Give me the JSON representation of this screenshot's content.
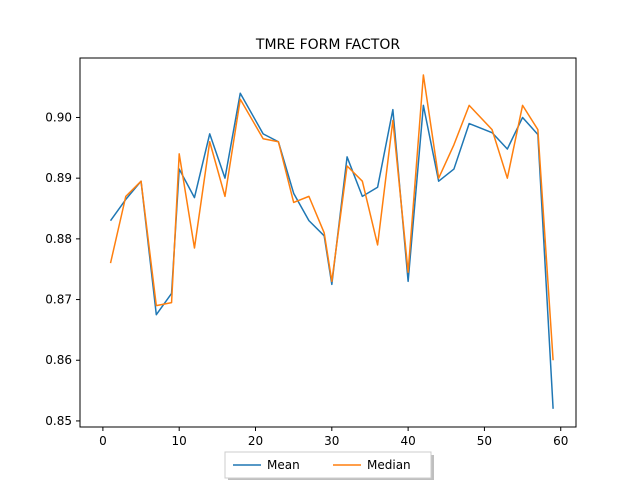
{
  "chart_data": {
    "type": "line",
    "title": "TMRE FORM FACTOR",
    "xlabel": "",
    "ylabel": "",
    "xlim": [
      -3,
      62
    ],
    "ylim": [
      0.849,
      0.9098
    ],
    "x_ticks": [
      0,
      10,
      20,
      30,
      40,
      50,
      60
    ],
    "y_ticks": [
      0.85,
      0.86,
      0.87,
      0.88,
      0.89,
      0.9
    ],
    "y_tick_labels": [
      "0.85",
      "0.86",
      "0.87",
      "0.88",
      "0.89",
      "0.90"
    ],
    "grid": false,
    "legend_position": "bottom-center, outside",
    "series": [
      {
        "name": "Mean",
        "color": "#1f77b4",
        "x": [
          1,
          3,
          5,
          7,
          9,
          10,
          12,
          14,
          16,
          18,
          21,
          23,
          25,
          27,
          29,
          30,
          32,
          34,
          36,
          38,
          40,
          42,
          44,
          46,
          48,
          51,
          53,
          55,
          57,
          59
        ],
        "y": [
          0.883,
          0.8865,
          0.8895,
          0.8675,
          0.871,
          0.8915,
          0.8868,
          0.8973,
          0.89,
          0.904,
          0.8973,
          0.896,
          0.8875,
          0.883,
          0.8805,
          0.8725,
          0.8935,
          0.887,
          0.8885,
          0.9013,
          0.873,
          0.902,
          0.8895,
          0.8915,
          0.899,
          0.8975,
          0.8948,
          0.9,
          0.8972,
          0.852
        ]
      },
      {
        "name": "Median",
        "color": "#ff7f0e",
        "x": [
          1,
          3,
          5,
          7,
          9,
          10,
          12,
          14,
          16,
          18,
          21,
          23,
          25,
          27,
          29,
          30,
          32,
          34,
          36,
          38,
          40,
          42,
          44,
          46,
          48,
          51,
          53,
          55,
          57,
          59
        ],
        "y": [
          0.876,
          0.887,
          0.8895,
          0.869,
          0.8695,
          0.894,
          0.8785,
          0.896,
          0.887,
          0.903,
          0.8965,
          0.896,
          0.886,
          0.887,
          0.881,
          0.873,
          0.892,
          0.8895,
          0.879,
          0.8995,
          0.8745,
          0.907,
          0.89,
          0.8955,
          0.902,
          0.898,
          0.89,
          0.902,
          0.898,
          0.86
        ]
      }
    ]
  }
}
